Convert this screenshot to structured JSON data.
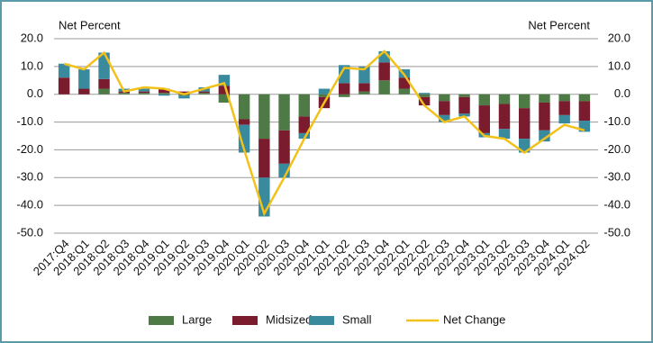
{
  "chart_data": {
    "type": "bar",
    "stacked": true,
    "y_label": "Net Percent",
    "y2_label": "Net Percent",
    "categories": [
      "2017:Q4",
      "2018:Q1",
      "2018:Q2",
      "2018:Q3",
      "2018:Q4",
      "2019:Q1",
      "2019:Q2",
      "2019:Q3",
      "2019:Q4",
      "2020:Q1",
      "2020:Q2",
      "2020:Q3",
      "2020:Q4",
      "2021:Q1",
      "2021:Q2",
      "2021:Q3",
      "2021:Q4",
      "2022:Q1",
      "2022:Q2",
      "2022:Q3",
      "2022:Q4",
      "2023:Q1",
      "2023:Q2",
      "2023:Q3",
      "2023:Q4",
      "2024:Q1",
      "2024:Q2"
    ],
    "series": [
      {
        "name": "Large",
        "color": "#4e7a46",
        "values": [
          0,
          0,
          2,
          0.5,
          0.5,
          0.5,
          -0.5,
          0.5,
          -3,
          -9,
          -16,
          -13,
          -8,
          -1,
          -1,
          1,
          5,
          2,
          -1,
          -2.5,
          -1,
          -4,
          -3.5,
          -5,
          -3,
          -2.5,
          -2.5
        ]
      },
      {
        "name": "Midsized",
        "color": "#7b1c2e",
        "values": [
          6,
          2,
          3.5,
          0.5,
          0.5,
          1.5,
          1,
          0.5,
          3,
          -2,
          -14,
          -12,
          -6,
          -4,
          4,
          3,
          6.5,
          4,
          -3,
          -5,
          -6,
          -10,
          -9,
          -11,
          -10,
          -5,
          -7
        ]
      },
      {
        "name": "Small",
        "color": "#3a8a9e",
        "values": [
          5,
          7,
          9.5,
          1,
          1,
          -0.5,
          -1,
          1.5,
          4,
          -10,
          -14,
          -5,
          -2,
          2,
          6.5,
          6,
          4,
          3,
          0.5,
          -2.5,
          -1,
          -1.5,
          -3.5,
          -5,
          -4,
          -3,
          -4
        ]
      },
      {
        "name": "Net Change",
        "color": "#f2c11a",
        "type": "line",
        "values": [
          11,
          9,
          15,
          1,
          2.5,
          2,
          0,
          2,
          4,
          -20,
          -43,
          -30,
          -16,
          -3,
          9.5,
          9,
          15.5,
          7,
          -4,
          -10,
          -8,
          -15,
          -16,
          -21,
          -16,
          -11,
          -13
        ]
      }
    ],
    "ylim": [
      -50,
      20
    ],
    "yticks": [
      {
        "value": 20,
        "label": "20.0"
      },
      {
        "value": 10,
        "label": "10.0"
      },
      {
        "value": 0,
        "label": "0.0"
      },
      {
        "value": -10,
        "label": "-10.0"
      },
      {
        "value": -20,
        "label": "-20.0"
      },
      {
        "value": -30,
        "label": "-30.0"
      },
      {
        "value": -40,
        "label": "-40.0"
      },
      {
        "value": -50,
        "label": "-50.0"
      }
    ],
    "y2lim": [
      -50,
      20
    ],
    "y2ticks": [
      {
        "value": 20,
        "label": "20.0"
      },
      {
        "value": 10,
        "label": "10.0"
      },
      {
        "value": 0,
        "label": "0.0"
      },
      {
        "value": -10,
        "label": "-10.0"
      },
      {
        "value": -20,
        "label": "-20.0"
      },
      {
        "value": -30,
        "label": "-30.0"
      },
      {
        "value": -40,
        "label": "-40.0"
      },
      {
        "value": -50,
        "label": "-50.0"
      }
    ],
    "grid": true,
    "legend": "bottom"
  }
}
